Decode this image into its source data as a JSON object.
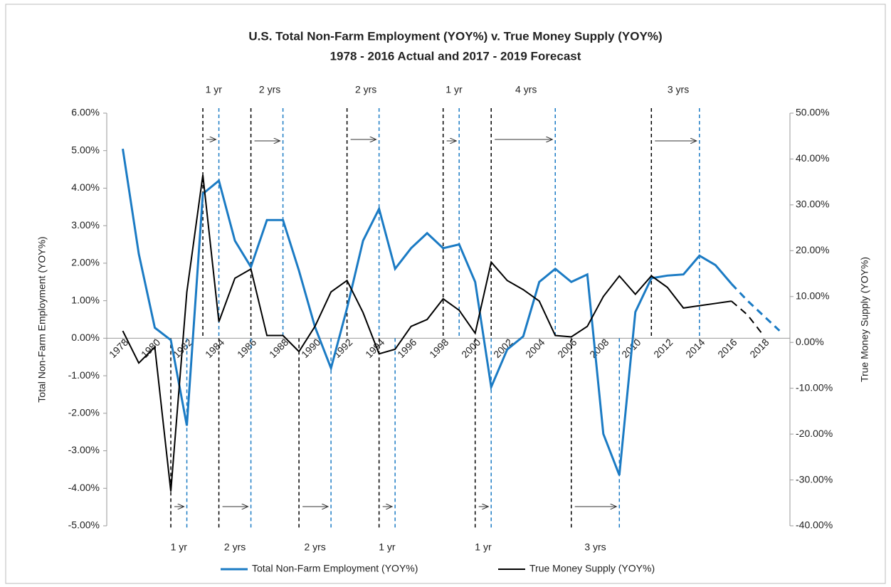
{
  "chart_data": {
    "type": "line",
    "title": "U.S. Total Non-Farm Employment (YOY%) v. True Money Supply (YOY%)",
    "subtitle": "1978 - 2016 Actual and 2017 - 2019 Forecast",
    "y_label": "Total Non-Farm Employment (YOY%)",
    "y2_label": "True Money Supply (YOY%)",
    "x": [
      1978,
      1979,
      1980,
      1981,
      1982,
      1983,
      1984,
      1985,
      1986,
      1987,
      1988,
      1989,
      1990,
      1991,
      1992,
      1993,
      1994,
      1995,
      1996,
      1997,
      1998,
      1999,
      2000,
      2001,
      2002,
      2003,
      2004,
      2005,
      2006,
      2007,
      2008,
      2009,
      2010,
      2011,
      2012,
      2013,
      2014,
      2015,
      2016,
      2017,
      2018,
      2019
    ],
    "xlim": [
      1977,
      2019.65
    ],
    "xticks": [
      1978,
      1980,
      1982,
      1984,
      1986,
      1988,
      1990,
      1992,
      1994,
      1996,
      1998,
      2000,
      2002,
      2004,
      2006,
      2008,
      2010,
      2012,
      2014,
      2016,
      2018
    ],
    "forecast_start": 2016,
    "series": [
      {
        "name": "Total Non-Farm Employment (YOY%)",
        "color": "#1b7bc4",
        "axis": "y",
        "values": [
          5.05,
          2.25,
          0.28,
          -0.05,
          -2.33,
          3.85,
          4.2,
          2.6,
          1.9,
          3.15,
          3.15,
          1.8,
          0.3,
          -0.8,
          0.8,
          2.6,
          3.45,
          1.85,
          2.4,
          2.8,
          2.4,
          2.5,
          1.5,
          -1.3,
          -0.3,
          0.05,
          1.5,
          1.85,
          1.5,
          1.7,
          -2.55,
          -3.65,
          0.7,
          1.6,
          1.67,
          1.7,
          2.2,
          1.95,
          1.45,
          1.0,
          0.6,
          0.2
        ]
      },
      {
        "name": "True Money Supply (YOY%)",
        "color": "#000000",
        "axis": "y2",
        "values": [
          2.5,
          -4.5,
          -1,
          -32.5,
          11,
          36.5,
          4.5,
          14,
          16,
          1.5,
          1.5,
          -2,
          3.5,
          11,
          13.5,
          6.5,
          -2.5,
          -1.5,
          3.5,
          5,
          9.5,
          7,
          2,
          17.5,
          13.5,
          11.5,
          9,
          1.5,
          1.2,
          3.5,
          10,
          14.5,
          10.5,
          14.5,
          12,
          7.5,
          8,
          8.5,
          9,
          6,
          1.5,
          null
        ]
      }
    ],
    "ylim": [
      -5,
      6
    ],
    "yticks": [
      {
        "value": -5,
        "label": "-5.00%"
      },
      {
        "value": -4,
        "label": "-4.00%"
      },
      {
        "value": -3,
        "label": "-3.00%"
      },
      {
        "value": -2,
        "label": "-2.00%"
      },
      {
        "value": -1,
        "label": "-1.00%"
      },
      {
        "value": 0,
        "label": "0.00%"
      },
      {
        "value": 1,
        "label": "1.00%"
      },
      {
        "value": 2,
        "label": "2.00%"
      },
      {
        "value": 3,
        "label": "3.00%"
      },
      {
        "value": 4,
        "label": "4.00%"
      },
      {
        "value": 5,
        "label": "5.00%"
      },
      {
        "value": 6,
        "label": "6.00%"
      }
    ],
    "y2lim": [
      -40,
      50
    ],
    "y2ticks": [
      {
        "value": -40,
        "label": "-40.00%"
      },
      {
        "value": -30,
        "label": "-30.00%"
      },
      {
        "value": -20,
        "label": "-20.00%"
      },
      {
        "value": -10,
        "label": "-10.00%"
      },
      {
        "value": 0,
        "label": "0.00%"
      },
      {
        "value": 10,
        "label": "10.00%"
      },
      {
        "value": 20,
        "label": "20.00%"
      },
      {
        "value": 30,
        "label": "30.00%"
      },
      {
        "value": 40,
        "label": "40.00%"
      },
      {
        "value": 50,
        "label": "50.00%"
      }
    ],
    "legend": "bottom",
    "annotations": [
      {
        "from": 1983,
        "to": 1984,
        "label": "1 yr",
        "position": "top"
      },
      {
        "from": 1986,
        "to": 1988,
        "label": "2 yrs",
        "position": "top"
      },
      {
        "from": 1992,
        "to": 1994,
        "label": "2 yrs",
        "position": "top"
      },
      {
        "from": 1998,
        "to": 1999,
        "label": "1 yr",
        "position": "top"
      },
      {
        "from": 2001,
        "to": 2005,
        "label": "4 yrs",
        "position": "top"
      },
      {
        "from": 2011,
        "to": 2014,
        "label": "3 yrs",
        "position": "top"
      },
      {
        "from": 1981,
        "to": 1982,
        "label": "1 yr",
        "position": "bottom"
      },
      {
        "from": 1984,
        "to": 1986,
        "label": "2 yrs",
        "position": "bottom"
      },
      {
        "from": 1989,
        "to": 1991,
        "label": "2 yrs",
        "position": "bottom"
      },
      {
        "from": 1994,
        "to": 1995,
        "label": "1 yr",
        "position": "bottom"
      },
      {
        "from": 2000,
        "to": 2001,
        "label": "1 yr",
        "position": "bottom"
      },
      {
        "from": 2006,
        "to": 2009,
        "label": "3 yrs",
        "position": "bottom"
      }
    ]
  }
}
